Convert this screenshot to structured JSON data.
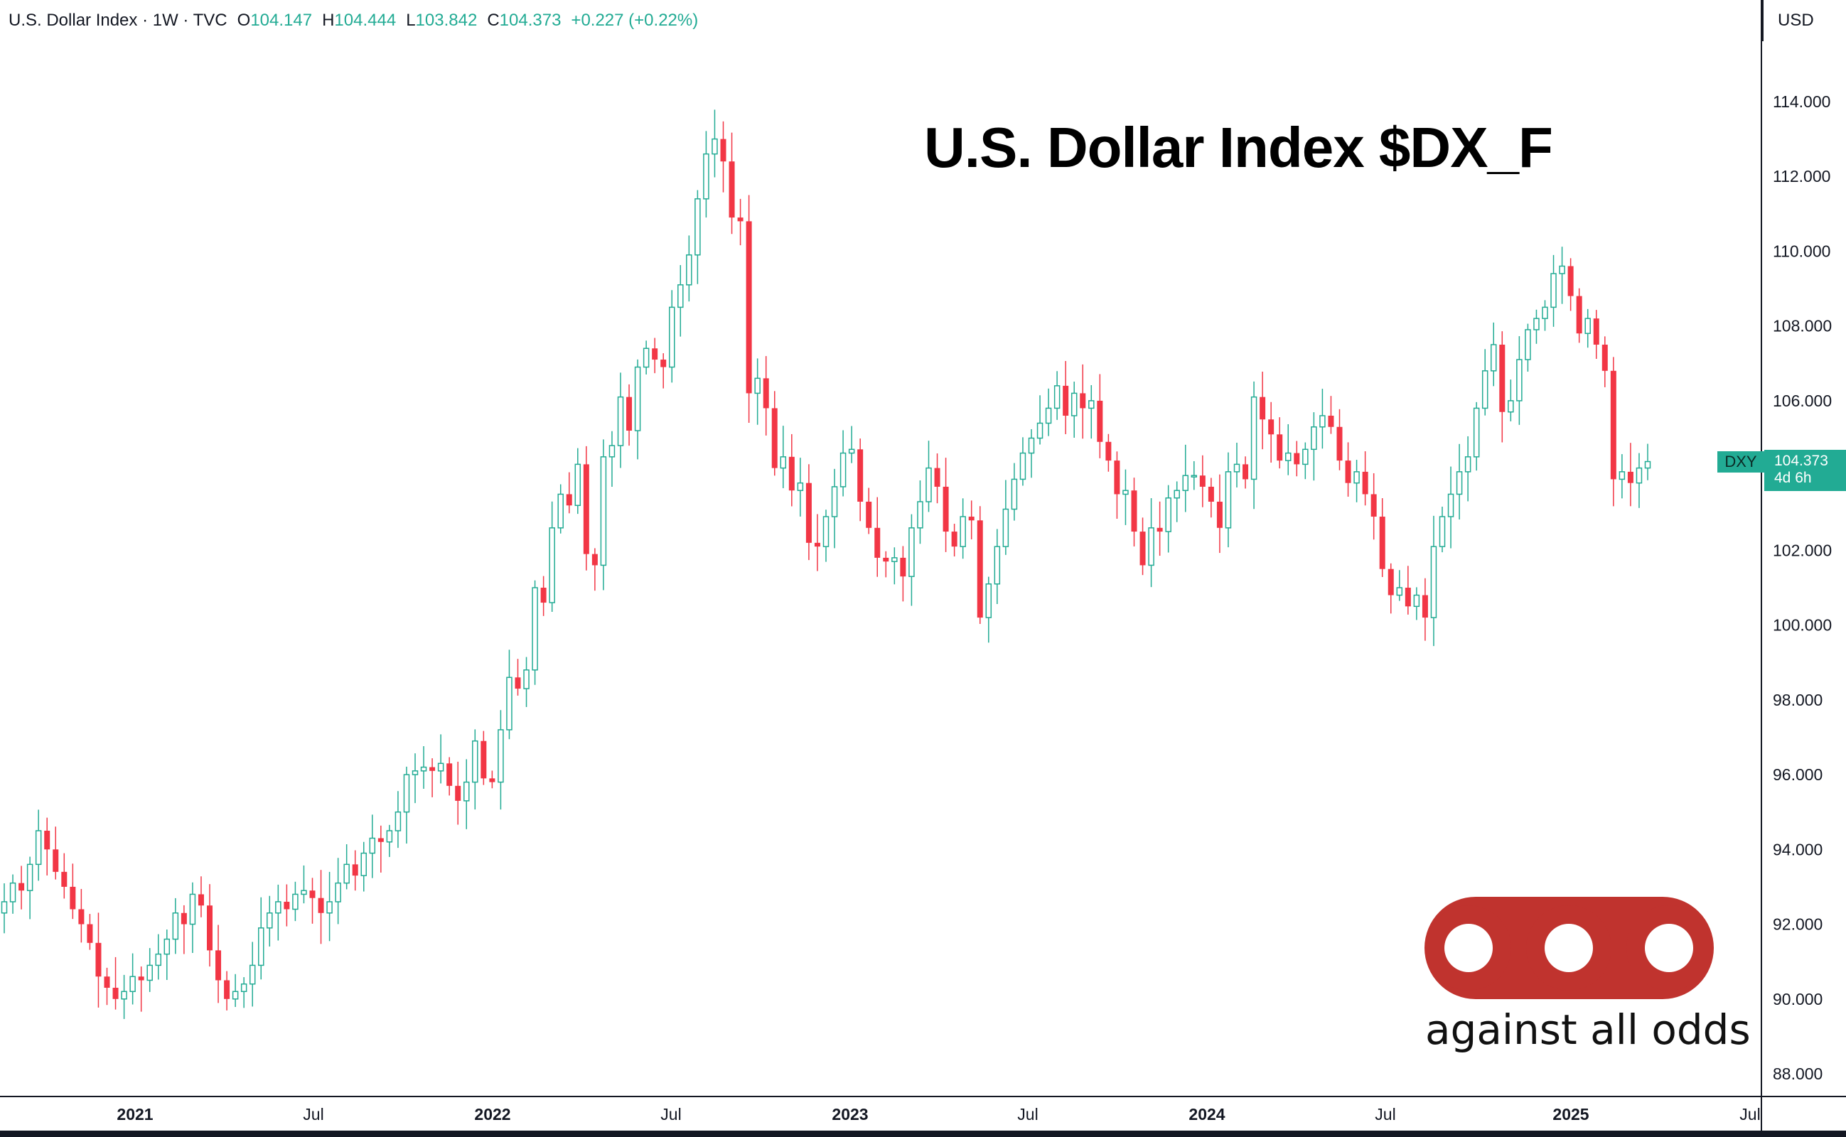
{
  "header": {
    "symbol": "U.S. Dollar Index · 1W · TVC",
    "open_label": "O",
    "open": "104.147",
    "high_label": "H",
    "high": "104.444",
    "low_label": "L",
    "low": "103.842",
    "close_label": "C",
    "close": "104.373",
    "change": "+0.227 (+0.22%)"
  },
  "currency": "USD",
  "overlay_title": "U.S. Dollar Index $DX_F",
  "logo": {
    "text": "against all odds",
    "color": "#c0332e"
  },
  "price_tag": {
    "symbol": "DXY",
    "price": "104.373",
    "countdown": "4d 6h"
  },
  "colors": {
    "up": "#22ab94",
    "down": "#f23645",
    "axis": "#131722",
    "tag": "#22ab94"
  },
  "chart_data": {
    "type": "candlestick",
    "interval": "1W",
    "x_tick_labels": [
      "2021",
      "Jul",
      "2022",
      "Jul",
      "2023",
      "Jul",
      "2024",
      "Jul",
      "2025",
      "Jul"
    ],
    "y_ticks": [
      "88.000",
      "90.000",
      "92.000",
      "94.000",
      "96.000",
      "98.000",
      "100.000",
      "102.000",
      "104.000",
      "106.000",
      "108.000",
      "110.000",
      "112.000",
      "114.000"
    ],
    "ylim": [
      87.4,
      116.0
    ],
    "grid": false,
    "weekly_closes_approx": [
      92.6,
      93.1,
      92.9,
      93.6,
      94.5,
      94.0,
      93.4,
      93.0,
      92.4,
      92.0,
      91.5,
      90.6,
      90.3,
      90.0,
      90.2,
      90.6,
      90.5,
      90.9,
      91.2,
      91.6,
      92.3,
      92.0,
      92.8,
      92.5,
      91.3,
      90.5,
      90.0,
      90.2,
      90.4,
      90.9,
      91.9,
      92.3,
      92.6,
      92.4,
      92.8,
      92.9,
      92.7,
      92.3,
      92.6,
      93.1,
      93.6,
      93.3,
      93.9,
      94.3,
      94.2,
      94.5,
      95.0,
      96.0,
      96.1,
      96.2,
      96.1,
      96.3,
      95.7,
      95.3,
      95.8,
      96.9,
      95.9,
      95.8,
      97.2,
      98.6,
      98.3,
      98.8,
      101.0,
      100.6,
      102.6,
      103.5,
      103.2,
      104.3,
      101.9,
      101.6,
      104.5,
      104.8,
      106.1,
      105.2,
      106.9,
      107.4,
      107.1,
      106.9,
      108.5,
      109.1,
      109.9,
      111.4,
      112.6,
      113.0,
      112.4,
      110.9,
      110.8,
      106.2,
      106.6,
      105.8,
      104.2,
      104.5,
      103.6,
      103.8,
      102.2,
      102.1,
      102.9,
      103.7,
      104.6,
      104.7,
      103.3,
      102.6,
      101.8,
      101.7,
      101.8,
      101.3,
      102.6,
      103.3,
      104.2,
      103.7,
      102.5,
      102.1,
      102.9,
      102.8,
      100.2,
      101.1,
      102.1,
      103.1,
      103.9,
      104.6,
      105.0,
      105.4,
      105.8,
      106.4,
      105.6,
      106.2,
      105.8,
      106.0,
      104.9,
      104.4,
      103.5,
      103.6,
      102.5,
      101.6,
      102.6,
      102.5,
      103.4,
      103.6,
      104.0,
      104.0,
      103.7,
      103.3,
      102.6,
      104.1,
      104.3,
      103.9,
      106.1,
      105.5,
      105.1,
      104.4,
      104.6,
      104.3,
      104.7,
      105.3,
      105.6,
      105.3,
      104.4,
      103.8,
      104.1,
      103.5,
      102.9,
      101.5,
      100.8,
      101.0,
      100.5,
      100.8,
      100.2,
      102.1,
      102.9,
      103.5,
      104.1,
      104.5,
      105.8,
      106.8,
      107.5,
      105.7,
      106.0,
      107.1,
      107.9,
      108.2,
      108.5,
      109.4,
      109.6,
      108.8,
      107.8,
      108.2,
      107.5,
      106.8,
      103.9,
      104.1,
      103.8,
      104.2,
      104.373
    ]
  }
}
